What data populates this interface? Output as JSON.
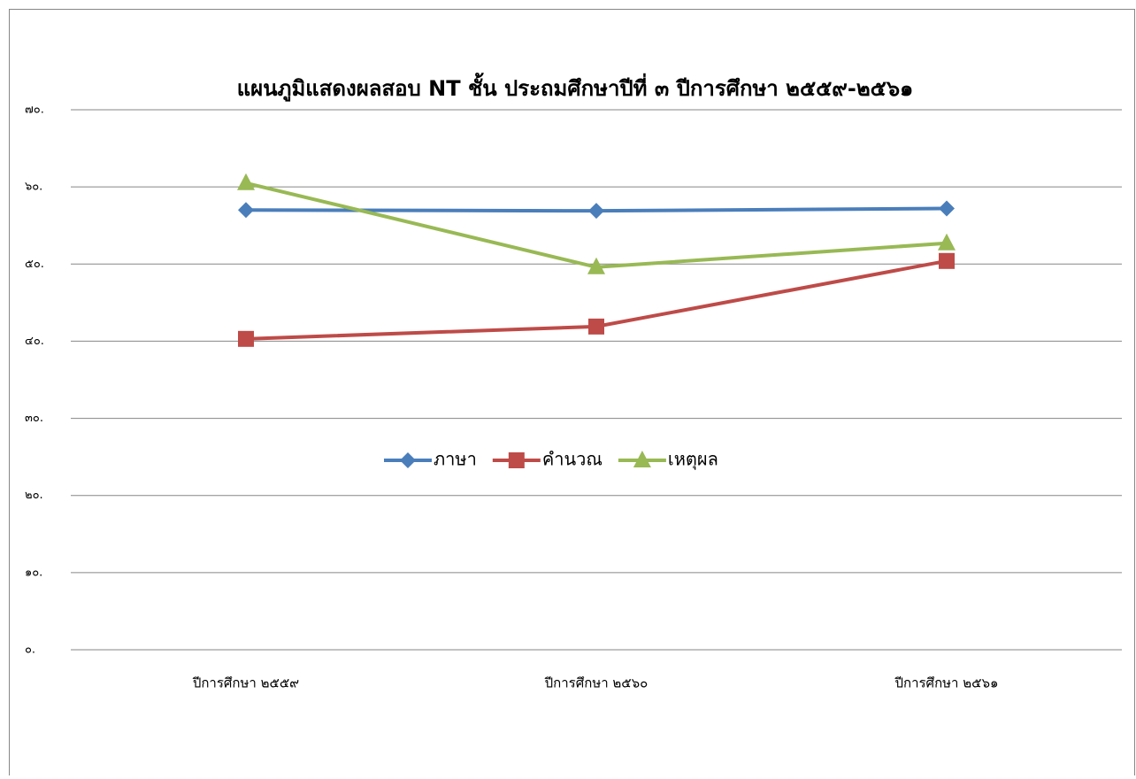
{
  "chart_data": {
    "type": "line",
    "title": "แผนภูมิแสดงผลสอบ NT ชั้น ประถมศึกษาปีที่ ๓ ปีการศึกษา ๒๕๕๙-๒๕๖๑",
    "categories": [
      "ปีการศึกษา ๒๕๕๙",
      "ปีการศึกษา ๒๕๖๐",
      "ปีการศึกษา ๒๕๖๑"
    ],
    "series": [
      {
        "name": "ภาษา",
        "color": "#4a7ebb",
        "marker": "diamond",
        "values": [
          57.0,
          56.9,
          57.2
        ]
      },
      {
        "name": "คำนวณ",
        "color": "#be4b48",
        "marker": "square",
        "values": [
          40.3,
          41.9,
          50.4
        ]
      },
      {
        "name": "เหตุผล",
        "color": "#98b954",
        "marker": "triangle",
        "values": [
          60.5,
          49.6,
          52.7
        ]
      }
    ],
    "ylim": [
      0,
      70
    ],
    "yticks": [
      {
        "value": 0,
        "label": "๐."
      },
      {
        "value": 10,
        "label": "๑๐."
      },
      {
        "value": 20,
        "label": "๒๐."
      },
      {
        "value": 30,
        "label": "๓๐."
      },
      {
        "value": 40,
        "label": "๔๐."
      },
      {
        "value": 50,
        "label": "๕๐."
      },
      {
        "value": 60,
        "label": "๖๐."
      },
      {
        "value": 70,
        "label": "๗๐."
      }
    ],
    "grid": true,
    "legend": "center"
  }
}
